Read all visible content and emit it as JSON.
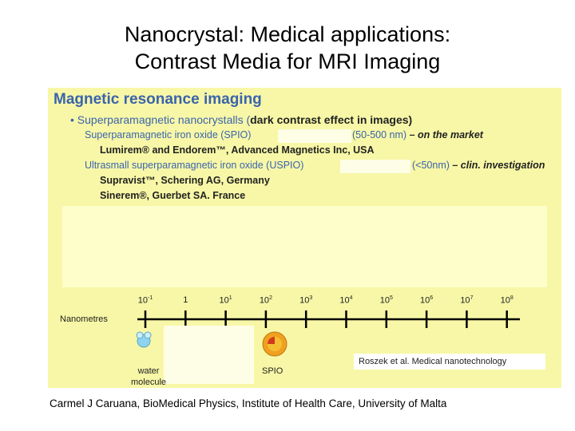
{
  "title": {
    "line1": "Nanocrystal: Medical applications:",
    "line2": "Contrast Media for MRI Imaging"
  },
  "panel": {
    "heading": "Magnetic resonance imaging",
    "bullet_prefix": "• Superparamagnetic nanocrystalls (",
    "bullet_dark": "dark contrast effect in images)",
    "spio_name": "Superparamagnetic iron oxide (SPIO)",
    "spio_size": "(50-500 nm)",
    "spio_status": " – on the market",
    "spio_products": "Lumirem® and Endorem™, Advanced Magnetics Inc, USA",
    "uspio_name": "Ultrasmall superparamagnetic iron oxide (USPIO)",
    "uspio_size": "(<50nm)",
    "uspio_status": " – clin. investigation",
    "uspio_product1": "Supravist™, Schering AG, Germany",
    "uspio_product2": "Sinerem®, Guerbet SA. France"
  },
  "scale": {
    "label": "Nanometres",
    "ticks": [
      {
        "base": "10",
        "exp": "-1"
      },
      {
        "base": "1",
        "exp": ""
      },
      {
        "base": "10",
        "exp": "1"
      },
      {
        "base": "10",
        "exp": "2"
      },
      {
        "base": "10",
        "exp": "3"
      },
      {
        "base": "10",
        "exp": "4"
      },
      {
        "base": "10",
        "exp": "5"
      },
      {
        "base": "10",
        "exp": "6"
      },
      {
        "base": "10",
        "exp": "7"
      },
      {
        "base": "10",
        "exp": "8"
      }
    ],
    "water_label_1": "water",
    "water_label_2": "molecule",
    "spio_label": "SPIO",
    "citation": "Roszek et al. Medical nanotechnology"
  },
  "footer": "Carmel J Caruana, BioMedical Physics, Institute of Health Care, University of Malta",
  "colors": {
    "panel_bg": "#f7f7a7",
    "heading_blue": "#3b64ac",
    "axis": "#000000",
    "spio_orange": "#f0a020",
    "water_blue": "#8fd3ee"
  }
}
